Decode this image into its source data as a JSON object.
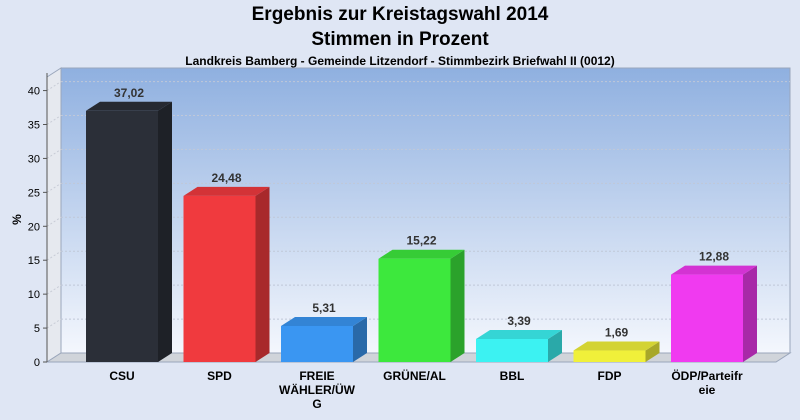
{
  "header": {
    "title_line1": "Ergebnis zur Kreistagswahl 2014",
    "title_line2": "Stimmen in Prozent",
    "subtitle": "Landkreis Bamberg - Gemeinde Litzendorf - Stimmbezirk Briefwahl II (0012)"
  },
  "chart_data": {
    "type": "bar",
    "title": "Ergebnis zur Kreistagswahl 2014 / Stimmen in Prozent",
    "subtitle": "Landkreis Bamberg - Gemeinde Litzendorf - Stimmbezirk Briefwahl II (0012)",
    "xlabel": "",
    "ylabel": "%",
    "ylim": [
      0,
      42
    ],
    "yticks": [
      0,
      5,
      10,
      15,
      20,
      25,
      30,
      35,
      40
    ],
    "grid": true,
    "categories": [
      [
        "CSU"
      ],
      [
        "SPD"
      ],
      [
        "FREIE",
        "WÄHLER/ÜW",
        "G"
      ],
      [
        "GRÜNE/AL"
      ],
      [
        "BBL"
      ],
      [
        "FDP"
      ],
      [
        "ÖDP/Parteifr",
        "eie"
      ]
    ],
    "values": [
      37.02,
      24.48,
      5.31,
      15.22,
      3.39,
      1.69,
      12.88
    ],
    "value_labels": [
      "37,02",
      "24,48",
      "5,31",
      "15,22",
      "3,39",
      "1,69",
      "12,88"
    ],
    "colors": [
      "#2b2f38",
      "#f03a3e",
      "#3a96f2",
      "#3de83d",
      "#3cf2f2",
      "#f0f03a",
      "#f03af0"
    ]
  }
}
